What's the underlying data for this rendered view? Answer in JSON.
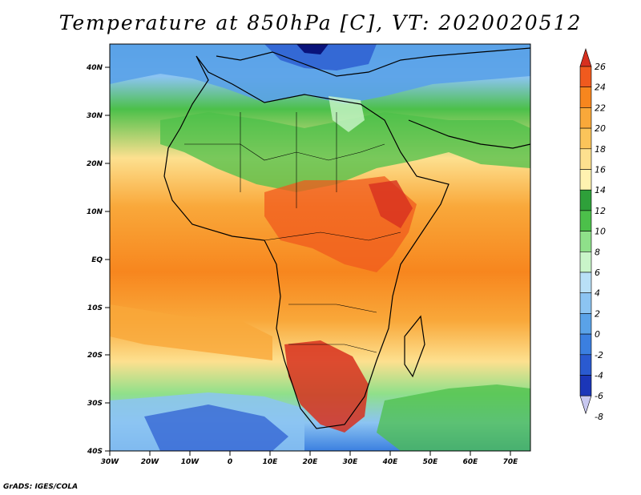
{
  "map": {
    "title": "Temperature at 850hPa [C], VT: 2020020512",
    "footer": "GrADS: IGES/COLA",
    "lat_labels": [
      "40N",
      "30N",
      "20N",
      "10N",
      "EQ",
      "10S",
      "20S",
      "30S",
      "40S"
    ],
    "lon_labels": [
      "30W",
      "20W",
      "10W",
      "0",
      "10E",
      "20E",
      "30E",
      "40E",
      "50E",
      "60E",
      "70E"
    ],
    "colorbar": {
      "labels": [
        "26",
        "24",
        "22",
        "20",
        "18",
        "16",
        "14",
        "12",
        "10",
        "8",
        "6",
        "4",
        "2",
        "0",
        "-2",
        "-4",
        "-6",
        "-8"
      ],
      "colors": [
        "#d7301f",
        "#f05a1e",
        "#f7861e",
        "#f9a83a",
        "#fbc45a",
        "#fde08f",
        "#fff2b0",
        "#2ea03a",
        "#4cc04a",
        "#8fe08a",
        "#c9f5c9",
        "#b9e0f7",
        "#8cc4f2",
        "#5aa2e8",
        "#3b7fe0",
        "#2a5ad0",
        "#1b36b8",
        "#0a137a"
      ]
    }
  }
}
